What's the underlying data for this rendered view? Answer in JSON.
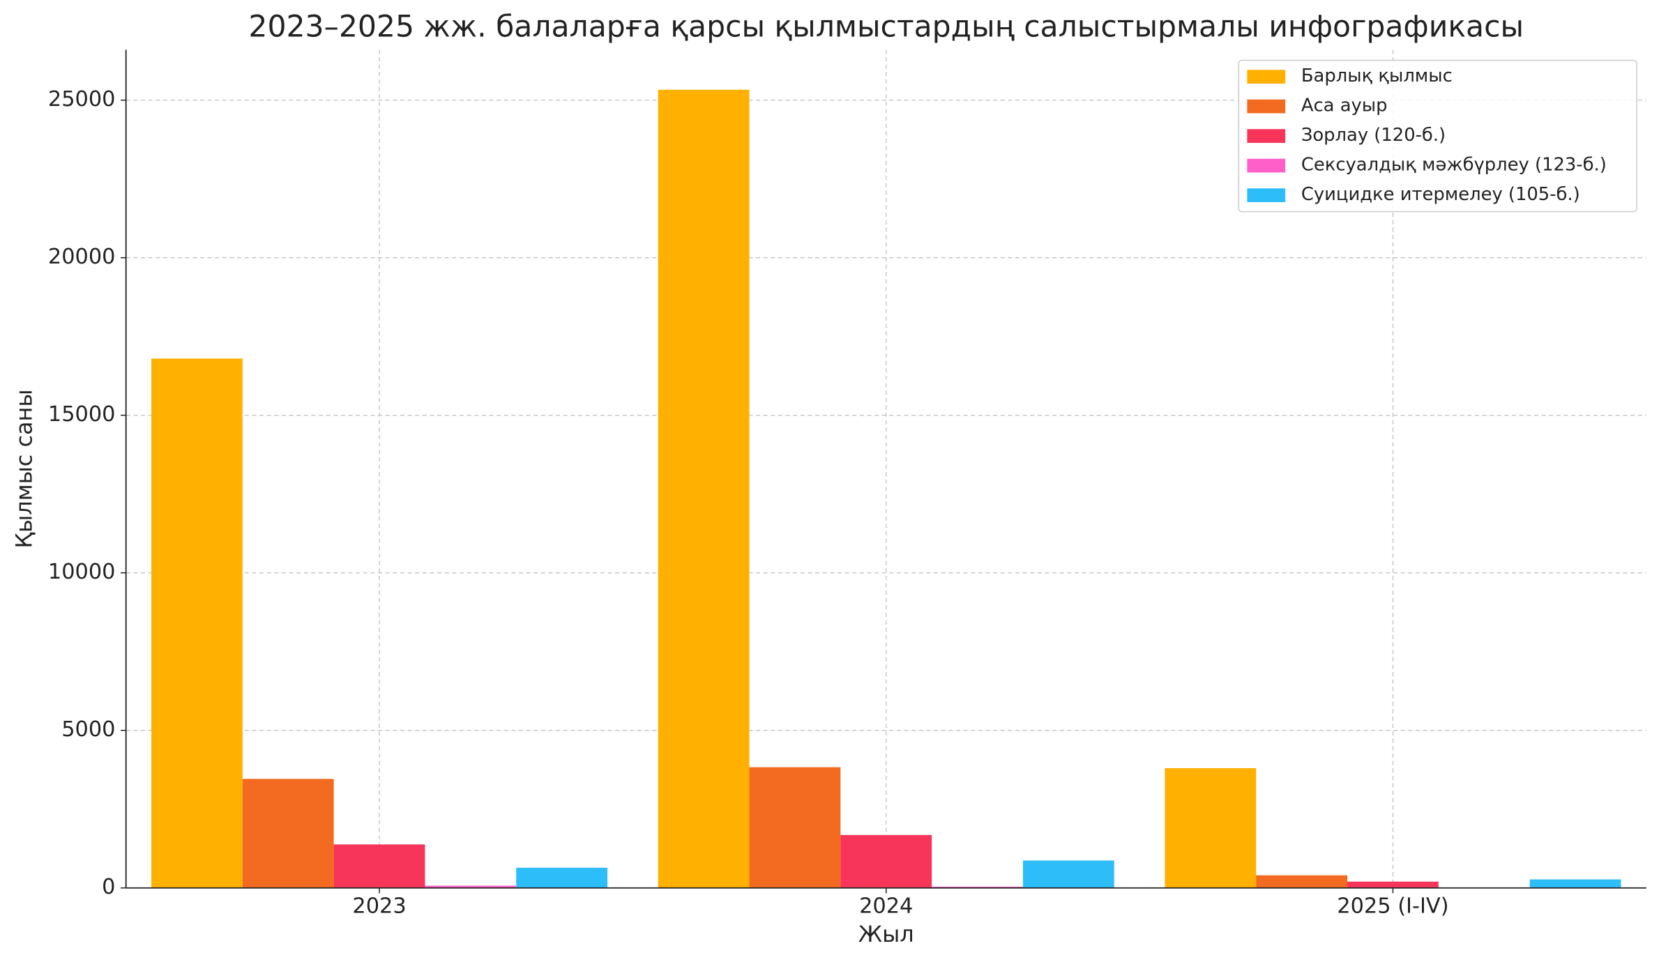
{
  "chart_data": {
    "type": "bar",
    "title": "2023–2025 жж. балаларға қарсы қылмыстардың салыстырмалы инфографикасы",
    "x_label": "Жыл",
    "y_label": "Қылмыс саны",
    "categories": [
      "2023",
      "2024",
      "2025 (I-IV)"
    ],
    "series": [
      {
        "name": "Барлық қылмыс",
        "color": "#ffb000",
        "values": [
          16800,
          25330,
          3800
        ]
      },
      {
        "name": "Аса ауыр",
        "color": "#f26b21",
        "values": [
          3460,
          3830,
          400
        ]
      },
      {
        "name": "Зорлау (120-б.)",
        "color": "#f7355a",
        "values": [
          1380,
          1680,
          200
        ]
      },
      {
        "name": "Сексуалдық мәжбүрлеу (123-б.)",
        "color": "#ff5fc8",
        "values": [
          70,
          40,
          10
        ]
      },
      {
        "name": "Суицидке итермелеу (105-б.)",
        "color": "#2dbdf9",
        "values": [
          640,
          870,
          270
        ]
      }
    ],
    "ylim": [
      0,
      26600
    ],
    "yticks": [
      0,
      5000,
      10000,
      15000,
      20000,
      25000
    ],
    "grid": true,
    "legend": "upper right"
  }
}
